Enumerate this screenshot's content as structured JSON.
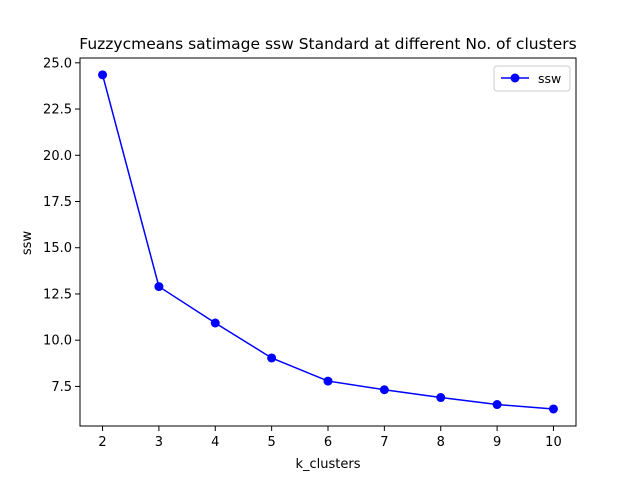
{
  "chart_data": {
    "type": "line",
    "title": "Fuzzycmeans satimage ssw Standard at different No. of clusters",
    "xlabel": "k_clusters",
    "ylabel": "ssw",
    "x": [
      2,
      3,
      4,
      5,
      6,
      7,
      8,
      9,
      10
    ],
    "xticks": [
      2,
      3,
      4,
      5,
      6,
      7,
      8,
      9,
      10
    ],
    "yticks": [
      7.5,
      10.0,
      12.5,
      15.0,
      17.5,
      20.0,
      22.5,
      25.0
    ],
    "xlim": [
      1.6,
      10.4
    ],
    "ylim": [
      5.36,
      25.26
    ],
    "grid": false,
    "legend_position": "top-right",
    "series": [
      {
        "name": "ssw",
        "color": "#0000ff",
        "marker": "circle",
        "values": [
          24.35,
          12.9,
          10.93,
          9.04,
          7.79,
          7.32,
          6.9,
          6.52,
          6.28
        ]
      }
    ]
  }
}
